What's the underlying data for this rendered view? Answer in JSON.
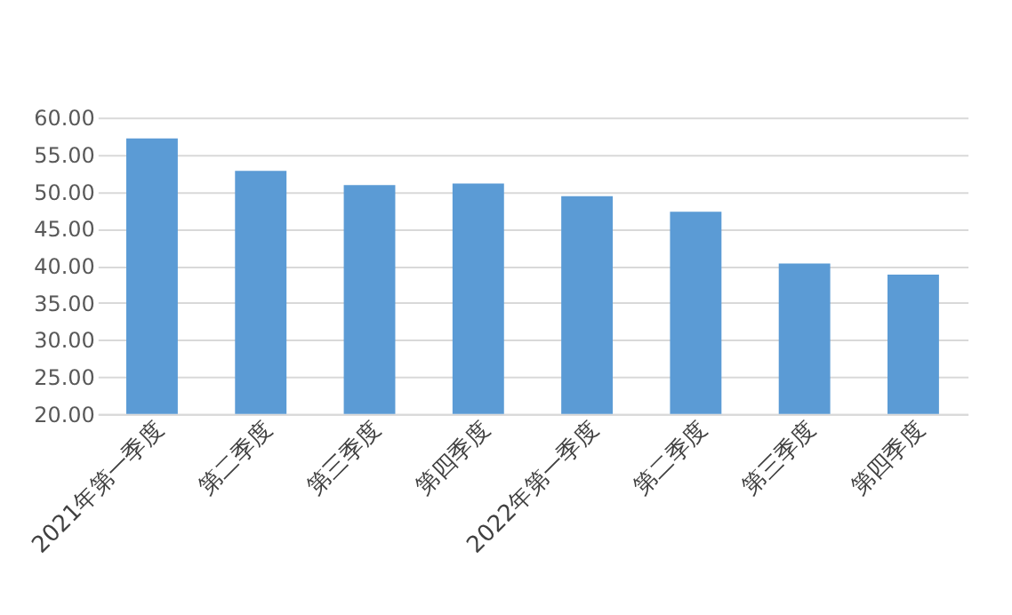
{
  "chart_data": {
    "type": "bar",
    "categories": [
      "2021年第一季度",
      "第二季度",
      "第三季度",
      "第四季度",
      "2022年第一季度",
      "第二季度",
      "第三季度",
      "第四季度"
    ],
    "values": [
      57.2,
      52.8,
      50.9,
      51.1,
      49.4,
      47.3,
      40.3,
      38.8
    ],
    "color": "#5b9bd5",
    "ylim": [
      20,
      60
    ],
    "yticks": [
      {
        "value": 20,
        "label": "20.00"
      },
      {
        "value": 25,
        "label": "25.00"
      },
      {
        "value": 30,
        "label": "30.00"
      },
      {
        "value": 35,
        "label": "35.00"
      },
      {
        "value": 40,
        "label": "40.00"
      },
      {
        "value": 45,
        "label": "45.00"
      },
      {
        "value": 50,
        "label": "50.00"
      },
      {
        "value": 55,
        "label": "55.00"
      },
      {
        "value": 60,
        "label": "60.00"
      }
    ],
    "grid": "y"
  }
}
